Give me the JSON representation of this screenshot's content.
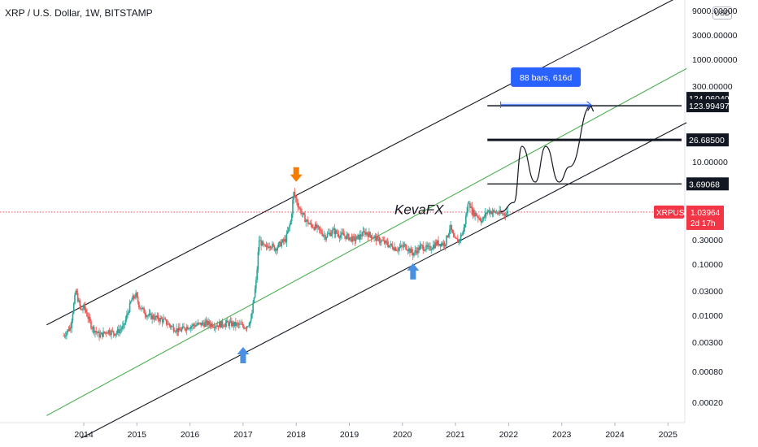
{
  "header": {
    "title": "XRP / U.S. Dollar, 1W, BITSTAMP",
    "currency": "USD"
  },
  "watermark": "KevaFX",
  "measure": {
    "label": "88 bars, 616d"
  },
  "colors": {
    "up": "#26a69a",
    "down": "#ef5350",
    "channel": "#131722",
    "midline": "#4caf50",
    "arrow_orange": "#f57c00",
    "arrow_blue": "#4a90e2",
    "measure": "#2962ff",
    "last_price": "#f23645"
  },
  "chart_data": {
    "type": "line",
    "symbol": "XRPUSD",
    "interval": "1W",
    "exchange": "BITSTAMP",
    "y_scale": "log",
    "xlim": [
      2013.25,
      2025.35
    ],
    "ylim": [
      5e-05,
      9000
    ],
    "y_ticks": [
      "9000.00000",
      "3000.00000",
      "1000.00000",
      "300.00000",
      "10.00000",
      "0.30000",
      "0.10000",
      "0.03000",
      "0.01000",
      "0.00300",
      "0.00080",
      "0.00020"
    ],
    "x_ticks": [
      "2014",
      "2015",
      "2016",
      "2017",
      "2018",
      "2019",
      "2020",
      "2021",
      "2022",
      "2023",
      "2024",
      "2025"
    ],
    "series": [
      {
        "values_x": [
          2013.62,
          2013.75,
          2013.85,
          2013.95,
          2014.0,
          2014.15,
          2014.3,
          2014.45,
          2014.6,
          2014.75,
          2014.9,
          2014.98,
          2015.05,
          2015.2,
          2015.35,
          2015.5,
          2015.65,
          2015.8,
          2015.95,
          2016.1,
          2016.3,
          2016.5,
          2016.7,
          2016.9,
          2017.05,
          2017.15,
          2017.25,
          2017.3,
          2017.35,
          2017.42,
          2017.5,
          2017.6,
          2017.7,
          2017.8,
          2017.9,
          2017.95,
          2018.0,
          2018.05,
          2018.15,
          2018.25,
          2018.4,
          2018.55,
          2018.7,
          2018.8,
          2018.95,
          2019.1,
          2019.3,
          2019.5,
          2019.7,
          2019.9,
          2020.05,
          2020.2,
          2020.35,
          2020.5,
          2020.65,
          2020.8,
          2020.9,
          2020.97,
          2021.05,
          2021.15,
          2021.25,
          2021.3,
          2021.4,
          2021.5,
          2021.6,
          2021.7,
          2021.8,
          2021.9,
          2022.0
        ],
        "values_y": [
          0.004,
          0.006,
          0.03,
          0.012,
          0.015,
          0.006,
          0.004,
          0.005,
          0.0045,
          0.006,
          0.02,
          0.025,
          0.015,
          0.01,
          0.009,
          0.008,
          0.006,
          0.005,
          0.006,
          0.0065,
          0.007,
          0.0065,
          0.007,
          0.0065,
          0.006,
          0.008,
          0.05,
          0.3,
          0.25,
          0.2,
          0.25,
          0.2,
          0.25,
          0.3,
          0.7,
          2.5,
          1.8,
          1.3,
          0.8,
          0.6,
          0.5,
          0.35,
          0.45,
          0.38,
          0.35,
          0.3,
          0.42,
          0.32,
          0.25,
          0.2,
          0.23,
          0.16,
          0.22,
          0.2,
          0.26,
          0.25,
          0.55,
          0.3,
          0.28,
          0.45,
          1.8,
          1.1,
          0.9,
          0.7,
          1.1,
          1.05,
          1.0,
          0.95,
          1.04
        ]
      }
    ],
    "channel": {
      "upper": [
        [
          2013.3,
          0.0065
        ],
        [
          2025.35,
          20000
        ]
      ],
      "middle": [
        [
          2013.3,
          0.00011
        ],
        [
          2025.35,
          660
        ]
      ],
      "lower": [
        [
          2013.95,
          4e-05
        ],
        [
          2025.35,
          58
        ]
      ]
    },
    "levels": [
      {
        "label": "124.06040",
        "value": 124.0604
      },
      {
        "label": "123.99497",
        "value": 123.99497
      },
      {
        "label": "26.68500",
        "value": 26.685
      },
      {
        "label": "3.69068",
        "value": 3.69068
      }
    ],
    "last_price": {
      "symbol": "XRPUSD",
      "value": "1.03964",
      "countdown": "2d 17h"
    },
    "annotations": {
      "top_arrow": {
        "x": 2018.0,
        "y": 3.5,
        "color": "orange"
      },
      "bottom_arrows": [
        {
          "x": 2017.0,
          "y": 0.003
        },
        {
          "x": 2020.2,
          "y": 0.13
        }
      ],
      "projection_path": [
        [
          2021.85,
          1.05
        ],
        [
          2022.1,
          1.6
        ],
        [
          2022.25,
          20
        ],
        [
          2022.5,
          4
        ],
        [
          2022.7,
          20
        ],
        [
          2022.95,
          4
        ],
        [
          2023.15,
          8
        ],
        [
          2023.55,
          124
        ]
      ],
      "measure_range": {
        "x_start": 2021.85,
        "x_end": 2023.55,
        "value": 130
      }
    }
  }
}
